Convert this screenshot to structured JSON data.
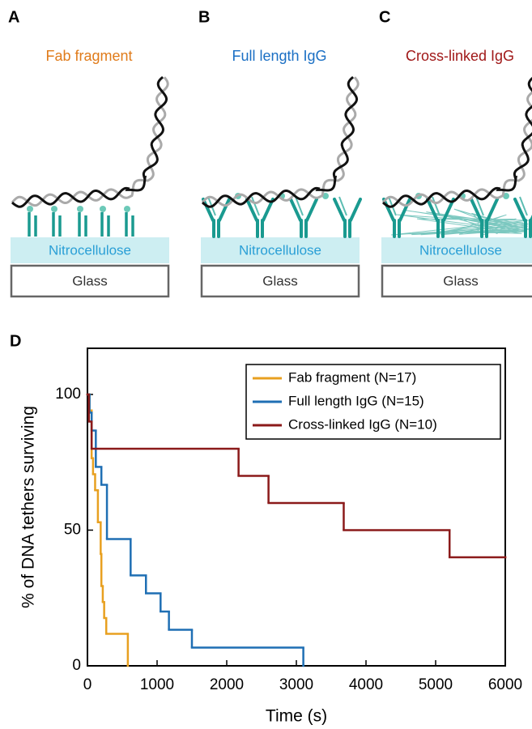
{
  "panels": [
    {
      "letter": "A",
      "title": "Fab fragment",
      "title_color": "#e07b1a",
      "layers": [
        "Nitrocellulose",
        "Glass"
      ]
    },
    {
      "letter": "B",
      "title": "Full length IgG",
      "title_color": "#1a6fc4",
      "layers": [
        "Nitrocellulose",
        "Glass"
      ]
    },
    {
      "letter": "C",
      "title": "Cross-linked IgG",
      "title_color": "#a01818",
      "layers": [
        "Nitrocellulose",
        "Glass"
      ]
    }
  ],
  "chart_data": {
    "type": "step",
    "panel_letter": "D",
    "x_label": "Time (s)",
    "y_label": "% of DNA tethers surviving",
    "xlim": [
      0,
      6000
    ],
    "ylim": [
      0,
      117
    ],
    "xticks": [
      0,
      1000,
      2000,
      3000,
      4000,
      5000,
      6000
    ],
    "yticks": [
      0,
      50,
      100
    ],
    "legend": "upper right",
    "series": [
      {
        "name": "Fab fragment (N=17)",
        "color": "#e8a020",
        "x": [
          0,
          30,
          60,
          80,
          110,
          150,
          190,
          200,
          220,
          240,
          270,
          580
        ],
        "values": [
          100,
          94.1,
          76.5,
          70.6,
          64.7,
          52.9,
          41.2,
          29.4,
          23.5,
          17.6,
          11.8,
          0
        ]
      },
      {
        "name": "Full length IgG (N=15)",
        "color": "#1f6fb4",
        "x": [
          0,
          30,
          60,
          120,
          200,
          280,
          620,
          840,
          1050,
          1170,
          1500,
          3100
        ],
        "values": [
          100,
          93.3,
          86.7,
          73.3,
          66.7,
          46.7,
          33.3,
          26.7,
          20,
          13.3,
          6.7,
          0
        ]
      },
      {
        "name": "Cross-linked IgG (N=10)",
        "color": "#8b1a1a",
        "x": [
          0,
          20,
          60,
          2170,
          2600,
          3680,
          5200,
          6000
        ],
        "values": [
          100,
          90,
          80,
          70,
          60,
          50,
          40,
          40
        ]
      }
    ]
  }
}
